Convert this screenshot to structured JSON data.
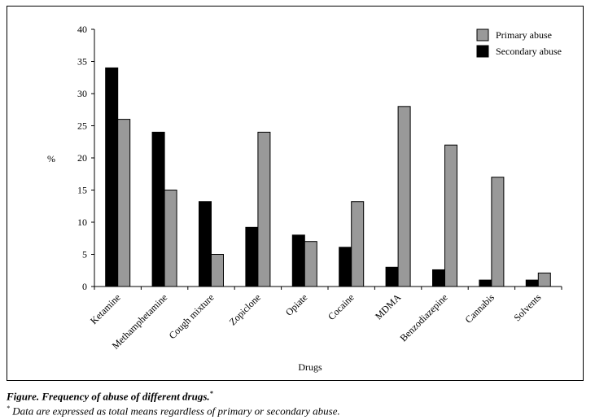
{
  "chart_data": {
    "type": "bar",
    "categories": [
      "Ketamine",
      "Methamphetamine",
      "Cough mixture",
      "Zopiclone",
      "Opiate",
      "Cocaine",
      "MDMA",
      "Benzodiazepine",
      "Cannabis",
      "Solvents"
    ],
    "series": [
      {
        "name": "Secondary abuse",
        "values": [
          34,
          24,
          13.2,
          9.2,
          8,
          6.1,
          3,
          2.6,
          1,
          1
        ],
        "color": "#000000"
      },
      {
        "name": "Primary abuse",
        "values": [
          26,
          15,
          5,
          24,
          7,
          13.2,
          28,
          22,
          17,
          2.1
        ],
        "color": "#999999"
      }
    ],
    "legend_order": [
      "Primary abuse",
      "Secondary abuse"
    ],
    "legend_position": "top-right",
    "xlabel": "Drugs",
    "ylabel": "%",
    "ylim": [
      0,
      40
    ],
    "yticks": [
      0,
      5,
      10,
      15,
      20,
      25,
      30,
      35,
      40
    ],
    "grid": false
  },
  "caption": {
    "title": "Figure. Frequency of abuse of different drugs.",
    "title_mark": "*",
    "note_mark": "*",
    "note": " Data are expressed as total means regardless of primary or secondary abuse."
  }
}
